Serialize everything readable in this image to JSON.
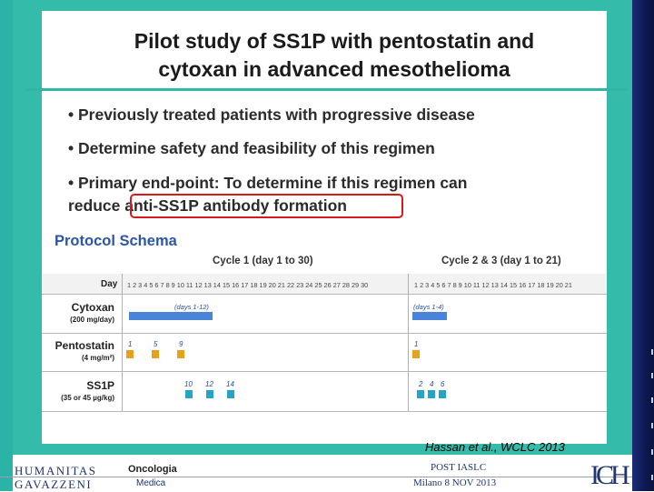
{
  "title": {
    "line1": "Pilot study of SS1P with pentostatin and",
    "line2": "cytoxan in advanced mesothelioma"
  },
  "bullets": [
    "• Previously treated patients with progressive disease",
    "• Determine safety and feasibility of this regimen",
    "• Primary end-point: To determine if this regimen can",
    "reduce anti-SS1P antibody formation"
  ],
  "schema": {
    "title": "Protocol Schema",
    "cycle1": "Cycle 1 (day 1 to 30)",
    "cycle23": "Cycle 2 & 3 (day 1 to 21)",
    "day_label": "Day",
    "days_cycle1": "1 2 3 4 5 6 7 8 9 10 11 12 13 14 15 16 17 18 19 20 21 22 23 24 25 26 27 28 29 30",
    "days_cycle23": "1 2 3 4 5 6 7 8 9 10 11 12 13 14 15 16 17 18 19 20 21",
    "rows": [
      {
        "name": "Cytoxan",
        "dose": "(200 mg/day)",
        "bar1": "(days 1-12)",
        "bar2": "(days 1-4)"
      },
      {
        "name": "Pentostatin",
        "dose": "(4 mg/m²)",
        "days1": [
          "1",
          "5",
          "9"
        ],
        "days2": [
          "1"
        ]
      },
      {
        "name": "SS1P",
        "dose": "(35 or 45 µg/kg)",
        "days1": [
          "10",
          "12",
          "14"
        ],
        "days2": [
          "2",
          "4",
          "6"
        ]
      }
    ]
  },
  "citation": "Hassan et al., WCLC 2013",
  "footer": {
    "logo_top": "HUMANITAS",
    "logo_bottom": "GAVAZZENI",
    "dept_line1": "Oncologia",
    "dept_line2": "Medica",
    "event_line1": "POST IASLC",
    "event_line2": "Milano 8 NOV 2013",
    "right_logo": "ICH"
  },
  "colors": {
    "teal": "#35bba9",
    "navy": "#0c1850",
    "bar_blue": "#4a84d8",
    "pentostatin_orange": "#e8a11c",
    "ss1p_cyan": "#28a3c8",
    "highlight_red": "#d61a1a",
    "schema_title_blue": "#2b56a6"
  }
}
